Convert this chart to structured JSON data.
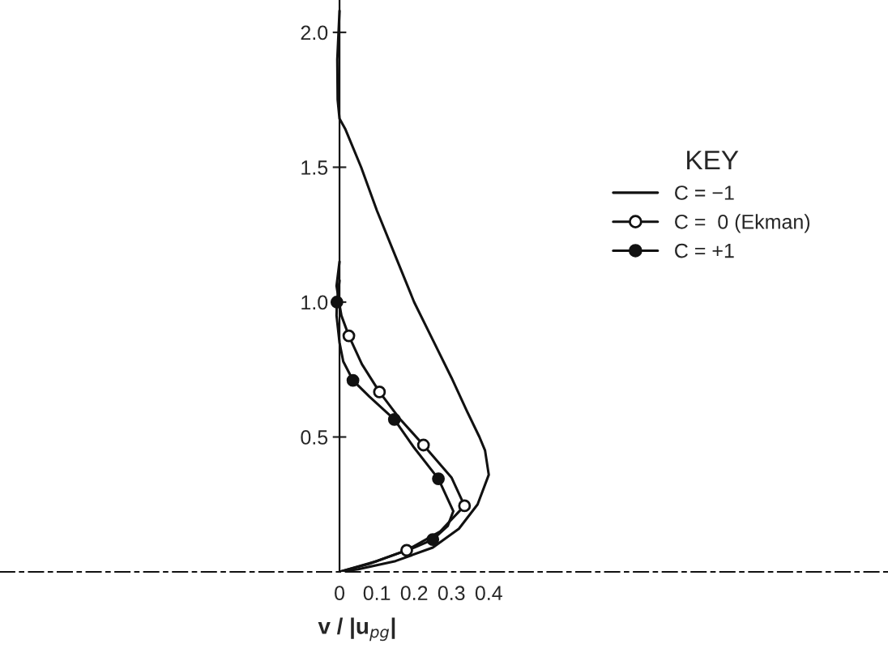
{
  "chart_data": {
    "type": "line",
    "xlabel": "v / |u$_{pg}$|",
    "legend_title": "KEY",
    "legend": "right",
    "grid": false,
    "xlim": [
      -0.91,
      1.47
    ],
    "ylim": [
      0,
      2.12
    ],
    "xticks": [
      0,
      0.1,
      0.2,
      0.3,
      0.4
    ],
    "yticks": [
      0.5,
      {
        "value": 1,
        "label": "1.0"
      },
      1.5,
      {
        "value": 2,
        "label": "2.0"
      }
    ],
    "series": [
      {
        "name": "C = −1",
        "color": "#111111",
        "marker": "none",
        "x": [
          0,
          0.05,
          0.15,
          0.25,
          0.32,
          0.37,
          0.4,
          0.39,
          0.375,
          0.34,
          0.3,
          0.25,
          0.2,
          0.15,
          0.1,
          0.058,
          0.016,
          0,
          -0.005,
          -0.006,
          0
        ],
        "values": [
          0,
          0.01,
          0.04,
          0.09,
          0.16,
          0.25,
          0.36,
          0.45,
          0.5,
          0.6,
          0.72,
          0.86,
          1.0,
          1.17,
          1.34,
          1.5,
          1.64,
          1.68,
          1.75,
          1.9,
          2.08
        ]
      },
      {
        "name": "C =  0 (Ekman)",
        "color": "#111111",
        "marker": "none",
        "x": [
          0,
          0.08,
          0.18,
          0.27,
          0.335,
          0.3,
          0.225,
          0.16,
          0.107,
          0.06,
          0.025,
          0.005,
          0,
          -0.008,
          0
        ],
        "values": [
          0,
          0.03,
          0.08,
          0.15,
          0.245,
          0.35,
          0.47,
          0.57,
          0.667,
          0.77,
          0.875,
          0.95,
          0.99,
          1.06,
          1.15
        ]
      },
      {
        "type": "scatter",
        "color": "#ffffff",
        "marker": "circle",
        "x": [
          0.18,
          0.335,
          0.225,
          0.107,
          0.025
        ],
        "values": [
          0.08,
          0.245,
          0.47,
          0.667,
          0.875
        ]
      },
      {
        "name": "C = +1",
        "color": "#111111",
        "marker": "none",
        "x": [
          0,
          0.1,
          0.2,
          0.25,
          0.29,
          0.305,
          0.265,
          0.2,
          0.147,
          0.08,
          0.036,
          0.01,
          0,
          -0.008,
          -0.007,
          0
        ],
        "values": [
          0,
          0.04,
          0.09,
          0.12,
          0.17,
          0.225,
          0.345,
          0.46,
          0.565,
          0.65,
          0.71,
          0.78,
          0.85,
          0.95,
          1.0,
          1.08
        ]
      },
      {
        "type": "scatter",
        "color": "#111111",
        "marker": "circle",
        "x": [
          0.25,
          0.265,
          0.147,
          0.036,
          -0.007
        ],
        "values": [
          0.12,
          0.345,
          0.565,
          0.71,
          1.0
        ]
      }
    ]
  }
}
